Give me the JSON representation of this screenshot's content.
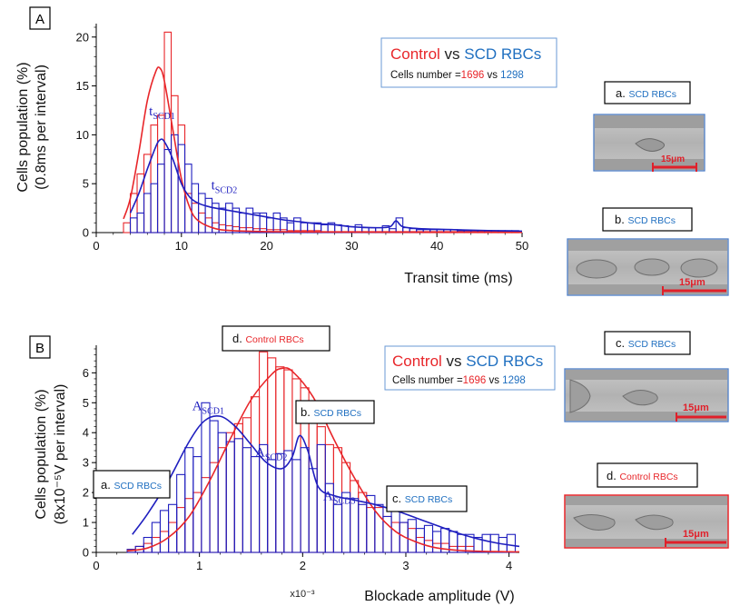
{
  "chart_data": [
    {
      "panel": "A",
      "type": "bar",
      "xlabel": "Transit time (ms)",
      "ylabel": [
        "Cells population (%)",
        "(0.8ms per interval)"
      ],
      "xlim": [
        0,
        50
      ],
      "ylim": [
        0,
        21
      ],
      "xticks": [
        0,
        10,
        20,
        30,
        40,
        50
      ],
      "yticks": [
        0,
        5,
        10,
        15,
        20
      ],
      "bin_width": 0.8,
      "series": [
        {
          "name": "Control",
          "color": "#e8262a",
          "bin_start": 3.2,
          "values": [
            1,
            4,
            6,
            8,
            11,
            12,
            20.5,
            14,
            11,
            4,
            3,
            2,
            1.5,
            1,
            0.8,
            0.7,
            0.6,
            0.5,
            0.5,
            0.4,
            0.4,
            0.3,
            0.3,
            0.3,
            0.2,
            0.2,
            0.2,
            0.2,
            0.2,
            0.1,
            0.1,
            0.1,
            0.1,
            0.1,
            0.1,
            0.1,
            0.1,
            0.1,
            0.1,
            0.1,
            0.1,
            0.1,
            0.1,
            0.1,
            0.1,
            0.1,
            0.1,
            0.1,
            0.1,
            0.1,
            0.1,
            0.1,
            0.1,
            0.1,
            0.1,
            0.1,
            0.1,
            0.1
          ],
          "fit": {
            "x": [
              3.2,
              4,
              5,
              6,
              7,
              7.5,
              8,
              9,
              10,
              11,
              12,
              14,
              16,
              20,
              30,
              50
            ],
            "y": [
              1.4,
              3.5,
              8.2,
              13.5,
              16.5,
              16.8,
              15.5,
              10.5,
              5.5,
              2.5,
              1.2,
              0.4,
              0.2,
              0.1,
              0.05,
              0.02
            ]
          }
        },
        {
          "name": "SCD RBCs",
          "color": "#1f1fbf",
          "bin_start": 4.0,
          "values": [
            1.5,
            2,
            4,
            5,
            7,
            8.5,
            10,
            9,
            7,
            5,
            4,
            3.5,
            3,
            2.5,
            3,
            2.5,
            2,
            2.5,
            2,
            2,
            1.5,
            2,
            1.5,
            1,
            1.5,
            1,
            1,
            1,
            0.8,
            1,
            0.8,
            0.7,
            0.6,
            0.8,
            0.5,
            0.5,
            0.5,
            0.7,
            0.4,
            1.5,
            0.5,
            0.4,
            0.3,
            0.3,
            0.3,
            0.3,
            0.3,
            0.3,
            0.2,
            0.2,
            0.2,
            0.2,
            0.2,
            0.2,
            0.2,
            0.2,
            0.2
          ],
          "fit": {
            "x": [
              4,
              5,
              6,
              7,
              7.5,
              8,
              9,
              10,
              11,
              12,
              13,
              14,
              16,
              18,
              20,
              22,
              24,
              26,
              28,
              30,
              33,
              34.5,
              35.2,
              36,
              38,
              42,
              46,
              50
            ],
            "y": [
              2,
              4,
              6.5,
              8.8,
              9.5,
              9.3,
              7.5,
              5,
              3.6,
              3,
              2.7,
              2.5,
              2.2,
              1.9,
              1.6,
              1.3,
              1.1,
              0.9,
              0.8,
              0.6,
              0.5,
              0.6,
              1.2,
              0.6,
              0.4,
              0.3,
              0.2,
              0.15
            ]
          }
        }
      ],
      "annotations": [
        {
          "main": "t",
          "sub": "SCD1",
          "x": 6.2,
          "y": 12.0
        },
        {
          "main": "t",
          "sub": "SCD2",
          "x": 13.5,
          "y": 4.4
        }
      ],
      "legend": {
        "control": "Control",
        "vs": "vs",
        "scd": "SCD RBCs",
        "count_label": "Cells number =",
        "count_control": "1696",
        "count_vs": "vs",
        "count_scd": "1298"
      }
    },
    {
      "panel": "B",
      "type": "bar",
      "xlabel": "Blockade amplitude (V)",
      "ylabel": [
        "Cells population (%)",
        "(8x10⁻⁵V per interval)"
      ],
      "xlim": [
        0,
        4.1
      ],
      "ylim": [
        0,
        6.8
      ],
      "xticks": [
        0,
        1,
        2,
        3,
        4
      ],
      "yticks": [
        0,
        1,
        2,
        3,
        4,
        5,
        6
      ],
      "x_multiplier": "x10⁻³",
      "bin_width": 0.08,
      "series": [
        {
          "name": "Control RBCs",
          "color": "#e8262a",
          "bin_start": 0.3,
          "values": [
            0.1,
            0.2,
            0.3,
            0.5,
            0.7,
            1,
            1.5,
            1.8,
            2,
            2.5,
            3,
            3.5,
            4,
            4.3,
            4.5,
            5.2,
            6.7,
            6.5,
            6.2,
            6.1,
            5.8,
            5.5,
            5,
            4.2,
            3.6,
            3.5,
            3,
            2.4,
            2,
            1.5,
            1.5,
            1.2,
            1,
            1,
            0.8,
            0.5,
            0.4,
            0.3,
            0.3,
            0.2,
            0.2,
            0.2
          ],
          "fit": {
            "x": [
              0.3,
              0.5,
              0.7,
              0.9,
              1.1,
              1.3,
              1.5,
              1.7,
              1.8,
              1.9,
              2.1,
              2.3,
              2.5,
              2.7,
              2.9,
              3.1,
              3.3,
              3.6,
              4.0,
              4.1
            ],
            "y": [
              0.05,
              0.15,
              0.5,
              1.2,
              2.4,
              3.8,
              5.1,
              5.95,
              6.15,
              6.05,
              5.2,
              3.8,
              2.5,
              1.4,
              0.7,
              0.35,
              0.15,
              0.05,
              0.02,
              0.02
            ]
          }
        },
        {
          "name": "SCD RBCs",
          "color": "#1f1fbf",
          "bin_start": 0.3,
          "values": [
            0.1,
            0.2,
            0.5,
            1,
            1.4,
            1.6,
            2.6,
            3.5,
            3.2,
            5,
            4.4,
            4,
            3.7,
            3.8,
            3.5,
            3.2,
            3.6,
            3.1,
            3.3,
            3.4,
            3.1,
            3.5,
            2.8,
            3.6,
            2.3,
            1.6,
            2,
            1.8,
            1.6,
            1.9,
            1.6,
            1.2,
            1.4,
            1,
            1.1,
            0.8,
            0.9,
            0.7,
            0.8,
            0.7,
            0.6,
            0.6,
            0.5,
            0.6,
            0.6,
            0.5,
            0.6
          ],
          "fit": {
            "x": [
              0.35,
              0.5,
              0.7,
              0.9,
              1.05,
              1.2,
              1.35,
              1.5,
              1.65,
              1.8,
              1.9,
              1.97,
              2.05,
              2.15,
              2.3,
              2.5,
              2.7,
              2.9,
              3.1,
              3.3,
              3.5,
              3.7,
              3.9,
              4.1
            ],
            "y": [
              0.6,
              1.3,
              2.4,
              3.7,
              4.4,
              4.55,
              4.2,
              3.6,
              3.0,
              2.8,
              3.2,
              3.9,
              3.4,
              2.2,
              1.9,
              1.75,
              1.6,
              1.4,
              1.15,
              0.9,
              0.65,
              0.45,
              0.3,
              0.2
            ]
          }
        }
      ],
      "annotations": [
        {
          "main": "A",
          "sub": "SCD1",
          "x": 0.93,
          "y": 4.75
        },
        {
          "main": "A",
          "sub": "SCD2",
          "x": 1.54,
          "y": 3.2
        },
        {
          "main": "A",
          "sub": "SCD3",
          "x": 2.2,
          "y": 1.75
        }
      ],
      "legend": {
        "control": "Control",
        "vs": "vs",
        "scd": "SCD RBCs",
        "count_label": "Cells number =",
        "count_control": "1696",
        "count_vs": "vs",
        "count_scd": "1298"
      }
    }
  ],
  "panel_labels": {
    "a": "A",
    "b": "B"
  },
  "callouts": {
    "a": {
      "prefix": "a.",
      "text": "SCD RBCs"
    },
    "b": {
      "prefix": "b.",
      "text": "SCD RBCs"
    },
    "c": {
      "prefix": "c.",
      "text": "SCD RBCs"
    },
    "d": {
      "prefix": "d.",
      "text": "Control RBCs"
    }
  },
  "micrographs": [
    {
      "prefix": "a.",
      "title": "SCD RBCs",
      "title_color": "#1f6fc0",
      "border": "#4f7fc8",
      "scale": "15μm"
    },
    {
      "prefix": "b.",
      "title": "SCD RBCs",
      "title_color": "#1f6fc0",
      "border": "#4f7fc8",
      "scale": "15μm"
    },
    {
      "prefix": "c.",
      "title": "SCD RBCs",
      "title_color": "#1f6fc0",
      "border": "#4f7fc8",
      "scale": "15μm"
    },
    {
      "prefix": "d.",
      "title": "Control RBCs",
      "title_color": "#e8262a",
      "border": "#e8262a",
      "scale": "15μm"
    }
  ],
  "colors": {
    "control": "#e8262a",
    "scd": "#1f1fbf",
    "scd_text": "#1f6fc0",
    "scale_bar": "#e0202a"
  }
}
